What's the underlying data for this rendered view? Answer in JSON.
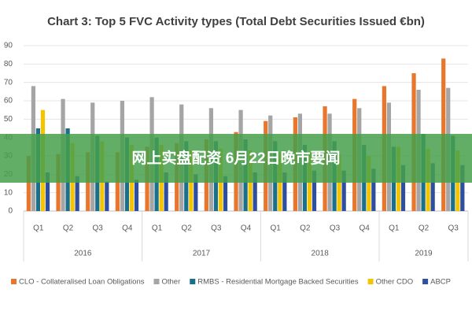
{
  "chart_data": {
    "type": "bar",
    "title": "Chart 3: Top 5 FVC Activity types (Total Debt Securities Issued €bn)",
    "categories": [
      "Q1",
      "Q2",
      "Q3",
      "Q4",
      "Q1",
      "Q2",
      "Q3",
      "Q4",
      "Q1",
      "Q2",
      "Q3",
      "Q4",
      "Q1",
      "Q2",
      "Q3"
    ],
    "groups": [
      "2016",
      "2017",
      "2018",
      "2019"
    ],
    "series": [
      {
        "name": "CLO - Collateralised Loan Obligations",
        "color": "#e8762c",
        "values": [
          30,
          31,
          32,
          32,
          35,
          37,
          39,
          43,
          49,
          51,
          57,
          61,
          68,
          75,
          83
        ]
      },
      {
        "name": "Other",
        "color": "#a5a5a5",
        "values": [
          68,
          61,
          59,
          60,
          62,
          58,
          56,
          55,
          52,
          53,
          53,
          56,
          59,
          66,
          67
        ]
      },
      {
        "name": "RMBS - Residential Mortgage Backed Securities",
        "color": "#1a6f8a",
        "values": [
          45,
          45,
          41,
          40,
          40,
          38,
          38,
          39,
          38,
          36,
          38,
          36,
          35,
          42,
          41
        ]
      },
      {
        "name": "Other CDO",
        "color": "#f5c400",
        "values": [
          55,
          37,
          38,
          36,
          36,
          33,
          34,
          33,
          32,
          32,
          31,
          30,
          35,
          34,
          33
        ]
      },
      {
        "name": "ABCP",
        "color": "#2e4fa0",
        "values": [
          21,
          19,
          16,
          17,
          21,
          20,
          19,
          21,
          21,
          22,
          22,
          23,
          25,
          26,
          25
        ]
      }
    ],
    "ylim": [
      0,
      90
    ],
    "yticks": [
      0,
      10,
      20,
      30,
      40,
      50,
      60,
      70,
      80,
      90
    ],
    "grid": true,
    "legend": "bottom"
  },
  "overlay_text": "网上实盘配资 6月22日晚市要闻"
}
